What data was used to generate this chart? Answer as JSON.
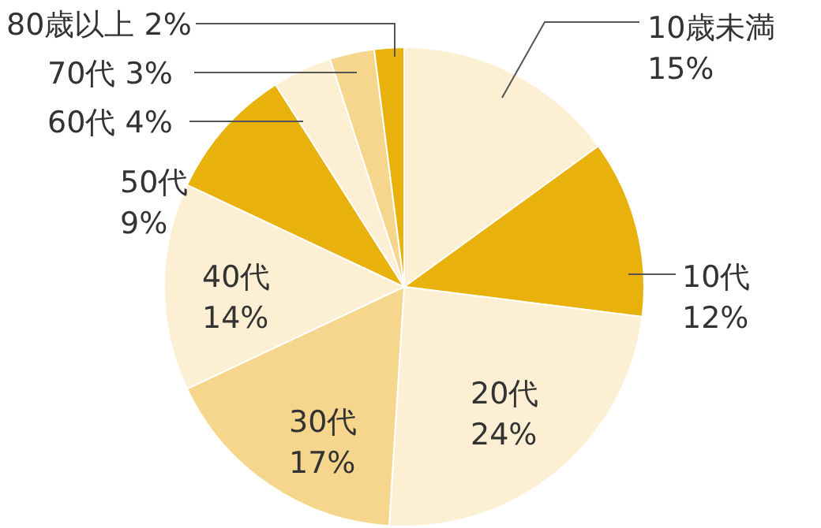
{
  "chart_data": {
    "type": "pie",
    "categories": [
      "10歳未満",
      "10代",
      "20代",
      "30代",
      "40代",
      "50代",
      "60代",
      "70代",
      "80歳以上"
    ],
    "values": [
      15,
      12,
      24,
      17,
      14,
      9,
      4,
      3,
      2
    ],
    "value_labels": [
      "15%",
      "12%",
      "24%",
      "17%",
      "14%",
      "9%",
      "4%",
      "3%",
      "2%"
    ],
    "colors": [
      "#fcefd3",
      "#e8b10c",
      "#fcefd3",
      "#f6d68c",
      "#fcefd3",
      "#e8b10c",
      "#fcefd3",
      "#f6d68c",
      "#e8b10c"
    ]
  }
}
